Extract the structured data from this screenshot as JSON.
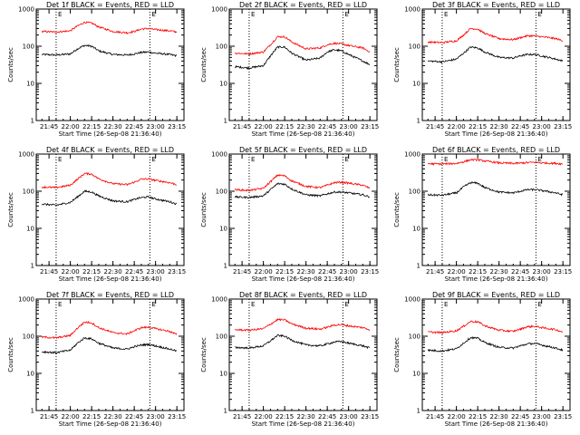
{
  "colors": {
    "events": "#000000",
    "lld": "#ff0000",
    "background": "#ffffff"
  },
  "x_tick_labels": [
    "21:45",
    "22:00",
    "22:15",
    "22:30",
    "22:45",
    "23:00",
    "23:15"
  ],
  "y_tick_labels": [
    "1",
    "10",
    "100",
    "1000"
  ],
  "marker_letters": [
    "E",
    "E"
  ],
  "ylabel": "Counts/sec",
  "xlabel": "Start Time (26-Sep-08 21:36:40)",
  "chart_data": [
    {
      "type": "line",
      "title": "Det 1f BLACK = Events, RED = LLD",
      "ylim": [
        1,
        1000
      ],
      "yscale": "log",
      "series": [
        {
          "color": "#000000",
          "x": [
            "21:40",
            "21:50",
            "22:00",
            "22:05",
            "22:10",
            "22:15",
            "22:20",
            "22:30",
            "22:40",
            "22:45",
            "22:50",
            "22:55",
            "23:00",
            "23:10",
            "23:15"
          ],
          "y": [
            60,
            58,
            62,
            85,
            105,
            100,
            75,
            60,
            58,
            62,
            68,
            70,
            65,
            60,
            55
          ]
        },
        {
          "color": "#ff0000",
          "x": [
            "21:40",
            "21:50",
            "22:00",
            "22:05",
            "22:10",
            "22:15",
            "22:20",
            "22:30",
            "22:40",
            "22:45",
            "22:50",
            "22:55",
            "23:00",
            "23:10",
            "23:15"
          ],
          "y": [
            250,
            240,
            260,
            350,
            440,
            420,
            330,
            250,
            230,
            250,
            290,
            300,
            280,
            260,
            240
          ]
        }
      ]
    },
    {
      "type": "line",
      "title": "Det 2f BLACK = Events, RED = LLD",
      "ylim": [
        1,
        1000
      ],
      "yscale": "log",
      "series": [
        {
          "color": "#000000",
          "x": [
            "21:40",
            "21:50",
            "22:00",
            "22:05",
            "22:10",
            "22:15",
            "22:20",
            "22:30",
            "22:40",
            "22:45",
            "22:50",
            "22:55",
            "23:00",
            "23:10",
            "23:15"
          ],
          "y": [
            28,
            26,
            30,
            55,
            95,
            95,
            65,
            42,
            48,
            70,
            80,
            75,
            60,
            40,
            32
          ]
        },
        {
          "color": "#ff0000",
          "x": [
            "21:40",
            "21:50",
            "22:00",
            "22:05",
            "22:10",
            "22:15",
            "22:20",
            "22:30",
            "22:40",
            "22:45",
            "22:50",
            "22:55",
            "23:00",
            "23:10",
            "23:15"
          ],
          "y": [
            65,
            62,
            70,
            110,
            180,
            180,
            130,
            85,
            90,
            110,
            120,
            115,
            105,
            90,
            70
          ]
        }
      ]
    },
    {
      "type": "line",
      "title": "Det 3f BLACK = Events, RED = LLD",
      "ylim": [
        1,
        1000
      ],
      "yscale": "log",
      "series": [
        {
          "color": "#000000",
          "x": [
            "21:40",
            "21:50",
            "22:00",
            "22:05",
            "22:10",
            "22:15",
            "22:20",
            "22:30",
            "22:40",
            "22:45",
            "22:50",
            "22:55",
            "23:00",
            "23:10",
            "23:15"
          ],
          "y": [
            40,
            38,
            45,
            65,
            95,
            90,
            70,
            50,
            48,
            55,
            60,
            60,
            55,
            45,
            40
          ]
        },
        {
          "color": "#ff0000",
          "x": [
            "21:40",
            "21:50",
            "22:00",
            "22:05",
            "22:10",
            "22:15",
            "22:20",
            "22:30",
            "22:40",
            "22:45",
            "22:50",
            "22:55",
            "23:00",
            "23:10",
            "23:15"
          ],
          "y": [
            130,
            125,
            140,
            200,
            300,
            290,
            220,
            160,
            150,
            170,
            190,
            190,
            180,
            160,
            140
          ]
        }
      ]
    },
    {
      "type": "line",
      "title": "Det 4f BLACK = Events, RED = LLD",
      "ylim": [
        1,
        1000
      ],
      "yscale": "log",
      "series": [
        {
          "color": "#000000",
          "x": [
            "21:40",
            "21:50",
            "22:00",
            "22:05",
            "22:10",
            "22:15",
            "22:20",
            "22:30",
            "22:40",
            "22:45",
            "22:50",
            "22:55",
            "23:00",
            "23:10",
            "23:15"
          ],
          "y": [
            45,
            42,
            50,
            70,
            100,
            95,
            75,
            55,
            52,
            60,
            68,
            70,
            62,
            52,
            45
          ]
        },
        {
          "color": "#ff0000",
          "x": [
            "21:40",
            "21:50",
            "22:00",
            "22:05",
            "22:10",
            "22:15",
            "22:20",
            "22:30",
            "22:40",
            "22:45",
            "22:50",
            "22:55",
            "23:00",
            "23:10",
            "23:15"
          ],
          "y": [
            130,
            125,
            145,
            210,
            300,
            290,
            215,
            160,
            150,
            175,
            210,
            215,
            195,
            170,
            150
          ]
        }
      ]
    },
    {
      "type": "line",
      "title": "Det 5f BLACK = Events, RED = LLD",
      "ylim": [
        1,
        1000
      ],
      "yscale": "log",
      "series": [
        {
          "color": "#000000",
          "x": [
            "21:40",
            "21:50",
            "22:00",
            "22:05",
            "22:10",
            "22:15",
            "22:20",
            "22:30",
            "22:40",
            "22:45",
            "22:50",
            "22:55",
            "23:00",
            "23:10",
            "23:15"
          ],
          "y": [
            70,
            68,
            75,
            110,
            160,
            155,
            115,
            80,
            75,
            85,
            95,
            95,
            90,
            80,
            70
          ]
        },
        {
          "color": "#ff0000",
          "x": [
            "21:40",
            "21:50",
            "22:00",
            "22:05",
            "22:10",
            "22:15",
            "22:20",
            "22:30",
            "22:40",
            "22:45",
            "22:50",
            "22:55",
            "23:00",
            "23:10",
            "23:15"
          ],
          "y": [
            110,
            105,
            120,
            180,
            270,
            260,
            190,
            135,
            125,
            145,
            170,
            175,
            165,
            145,
            120
          ]
        }
      ]
    },
    {
      "type": "line",
      "title": "Det 6f BLACK = Events, RED = LLD",
      "ylim": [
        1,
        1000
      ],
      "yscale": "log",
      "series": [
        {
          "color": "#000000",
          "x": [
            "21:40",
            "21:50",
            "22:00",
            "22:05",
            "22:10",
            "22:15",
            "22:20",
            "22:30",
            "22:40",
            "22:45",
            "22:50",
            "22:55",
            "23:00",
            "23:10",
            "23:15"
          ],
          "y": [
            80,
            78,
            90,
            130,
            170,
            165,
            125,
            95,
            90,
            100,
            110,
            110,
            105,
            90,
            80
          ]
        },
        {
          "color": "#ff0000",
          "x": [
            "21:40",
            "21:50",
            "22:00",
            "22:05",
            "22:10",
            "22:15",
            "22:20",
            "22:30",
            "22:40",
            "22:45",
            "22:50",
            "22:55",
            "23:00",
            "23:10",
            "23:15"
          ],
          "y": [
            550,
            540,
            560,
            620,
            700,
            700,
            650,
            580,
            560,
            570,
            590,
            600,
            580,
            560,
            540
          ]
        }
      ]
    },
    {
      "type": "line",
      "title": "Det 7f BLACK = Events, RED = LLD",
      "ylim": [
        1,
        1000
      ],
      "yscale": "log",
      "series": [
        {
          "color": "#000000",
          "x": [
            "21:40",
            "21:50",
            "22:00",
            "22:05",
            "22:10",
            "22:15",
            "22:20",
            "22:30",
            "22:40",
            "22:45",
            "22:50",
            "22:55",
            "23:00",
            "23:10",
            "23:15"
          ],
          "y": [
            38,
            36,
            42,
            65,
            90,
            85,
            65,
            48,
            45,
            52,
            58,
            60,
            55,
            45,
            40
          ]
        },
        {
          "color": "#ff0000",
          "x": [
            "21:40",
            "21:50",
            "22:00",
            "22:05",
            "22:10",
            "22:15",
            "22:20",
            "22:30",
            "22:40",
            "22:45",
            "22:50",
            "22:55",
            "23:00",
            "23:10",
            "23:15"
          ],
          "y": [
            95,
            90,
            105,
            165,
            240,
            230,
            170,
            125,
            115,
            140,
            170,
            175,
            160,
            135,
            110
          ]
        }
      ]
    },
    {
      "type": "line",
      "title": "Det 8f BLACK = Events, RED = LLD",
      "ylim": [
        1,
        1000
      ],
      "yscale": "log",
      "series": [
        {
          "color": "#000000",
          "x": [
            "21:40",
            "21:50",
            "22:00",
            "22:05",
            "22:10",
            "22:15",
            "22:20",
            "22:30",
            "22:40",
            "22:45",
            "22:50",
            "22:55",
            "23:00",
            "23:10",
            "23:15"
          ],
          "y": [
            50,
            48,
            55,
            75,
            105,
            100,
            78,
            58,
            55,
            62,
            70,
            72,
            65,
            55,
            48
          ]
        },
        {
          "color": "#ff0000",
          "x": [
            "21:40",
            "21:50",
            "22:00",
            "22:05",
            "22:10",
            "22:15",
            "22:20",
            "22:30",
            "22:40",
            "22:45",
            "22:50",
            "22:55",
            "23:00",
            "23:10",
            "23:15"
          ],
          "y": [
            150,
            145,
            160,
            210,
            280,
            275,
            215,
            165,
            155,
            175,
            200,
            205,
            190,
            170,
            150
          ]
        }
      ]
    },
    {
      "type": "line",
      "title": "Det 9f BLACK = Events, RED = LLD",
      "ylim": [
        1,
        1000
      ],
      "yscale": "log",
      "series": [
        {
          "color": "#000000",
          "x": [
            "21:40",
            "21:50",
            "22:00",
            "22:05",
            "22:10",
            "22:15",
            "22:20",
            "22:30",
            "22:40",
            "22:45",
            "22:50",
            "22:55",
            "23:00",
            "23:10",
            "23:15"
          ],
          "y": [
            42,
            40,
            46,
            65,
            92,
            88,
            68,
            50,
            48,
            55,
            62,
            64,
            58,
            48,
            42
          ]
        },
        {
          "color": "#ff0000",
          "x": [
            "21:40",
            "21:50",
            "22:00",
            "22:05",
            "22:10",
            "22:15",
            "22:20",
            "22:30",
            "22:40",
            "22:45",
            "22:50",
            "22:55",
            "23:00",
            "23:10",
            "23:15"
          ],
          "y": [
            130,
            125,
            140,
            185,
            250,
            245,
            190,
            145,
            135,
            155,
            180,
            185,
            170,
            150,
            130
          ]
        }
      ]
    }
  ]
}
